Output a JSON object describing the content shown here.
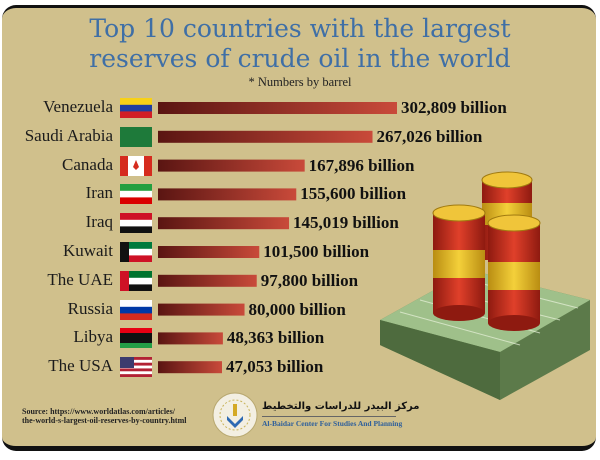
{
  "chart_data": {
    "type": "bar",
    "orientation": "horizontal",
    "title": "Top 10 countries with the largest reserves of crude oil in the world",
    "subtitle": "* Numbers by barrel",
    "categories": [
      "Venezuela",
      "Saudi Arabia",
      "Canada",
      "Iran",
      "Iraq",
      "Kuwait",
      "The UAE",
      "Russia",
      "Libya",
      "The USA"
    ],
    "values": [
      302809,
      267026,
      167896,
      155600,
      145019,
      101500,
      97800,
      80000,
      48363,
      47053
    ],
    "data_labels": [
      "302,809 billion",
      "267,026 billion",
      "167,896 billion",
      "155,600 billion",
      "145,019 billion",
      "101,500 billion",
      "97,800 billion",
      "80,000 billion",
      "48,363 billion",
      "47,053 billion"
    ],
    "unit": "billion",
    "bar_gradient": [
      "#5a1512",
      "#c94a3a"
    ],
    "grid": false,
    "legend": "none"
  },
  "title_lines": [
    "Top 10 countries with the largest",
    "reserves of crude oil in the world"
  ],
  "source_lines": [
    "Source: https://www.worldatlas.com/articles/",
    "the-world-s-largest-oil-reserves-by-country.html"
  ],
  "organization": {
    "name_ar": "مركز البيدر للدراسات والتخطيط",
    "name_en": "Al-Baidar Center For Studies And Planning"
  },
  "colors": {
    "background": "#d0c08c",
    "title": "#3f6fa6",
    "org_en": "#2e5f9b"
  }
}
